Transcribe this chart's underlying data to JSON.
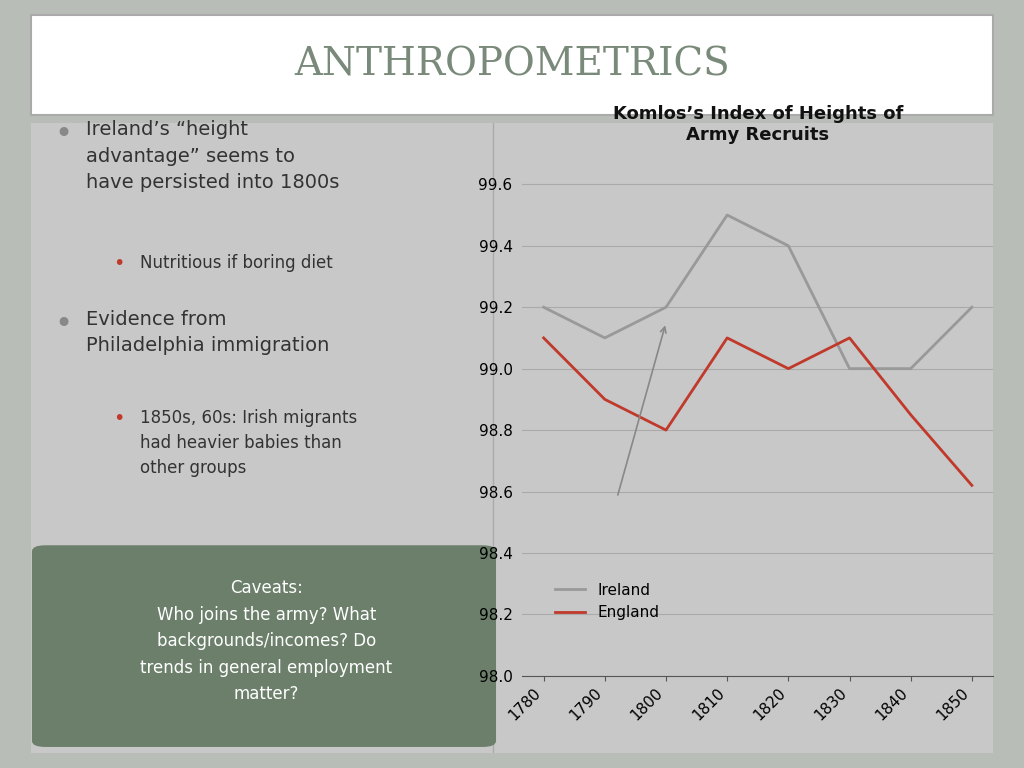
{
  "title": "ANTHROPOMETRICS",
  "title_color": "#7a8a7a",
  "bg_color": "#c8c8c8",
  "slide_bg": "#b8bdb8",
  "title_box_color": "#ffffff",
  "chart_title": "Komlos’s Index of Heights of\nArmy Recruits",
  "x_values": [
    1780,
    1790,
    1800,
    1810,
    1820,
    1830,
    1840,
    1850
  ],
  "ireland_values": [
    99.2,
    99.1,
    99.2,
    99.5,
    99.4,
    99.0,
    99.0,
    99.2
  ],
  "england_values": [
    99.1,
    98.9,
    98.8,
    99.1,
    99.0,
    99.1,
    98.85,
    98.62
  ],
  "ireland_color": "#999999",
  "england_color": "#c0392b",
  "ylim_min": 98.0,
  "ylim_max": 99.7,
  "yticks": [
    98.0,
    98.2,
    98.4,
    98.6,
    98.8,
    99.0,
    99.2,
    99.4,
    99.6
  ],
  "bullet1": "Ireland’s “height\nadvantage” seems to\nhave persisted into 1800s",
  "sub_bullet1": "Nutritious if boring diet",
  "bullet2": "Evidence from\nPhiladelphia immigration",
  "sub_bullet2": "1850s, 60s: Irish migrants\nhad heavier babies than\nother groups",
  "caveat_text": "Caveats:\nWho joins the army? What\nbackgrounds/incomes? Do\ntrends in general employment\nmatter?",
  "caveat_bg": "#6b7f6b",
  "caveat_text_color": "#ffffff",
  "bullet_color": "#888888",
  "sub_bullet_color": "#c0392b",
  "text_color": "#333333"
}
